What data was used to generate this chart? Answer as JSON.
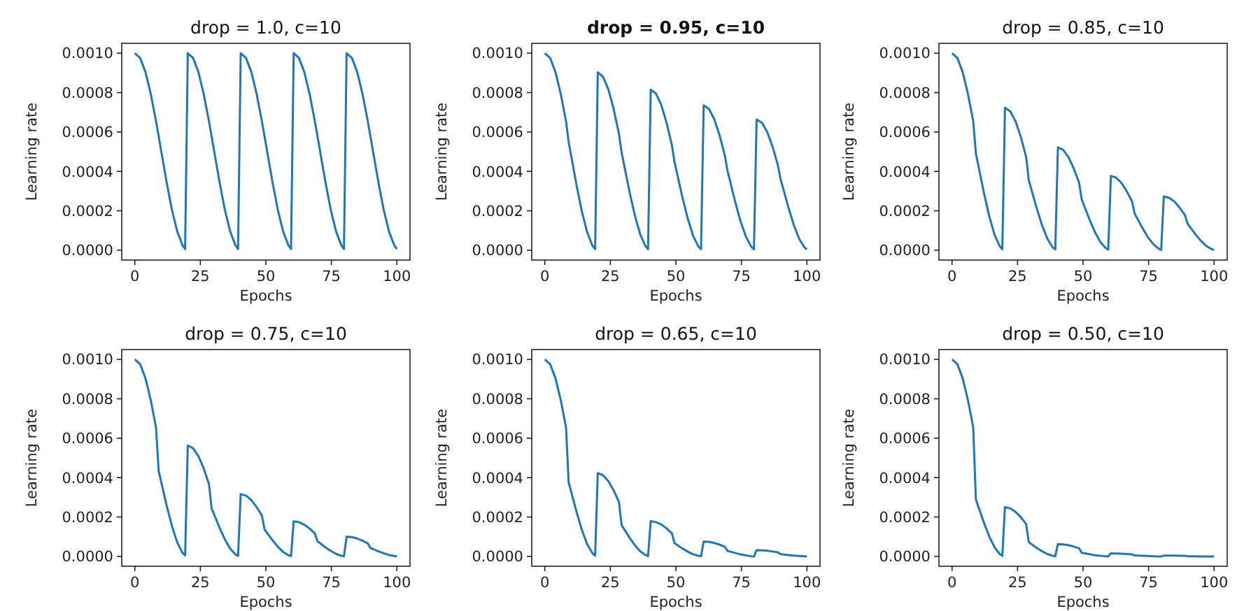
{
  "chart_data": [
    {
      "type": "line",
      "title": "drop = 1.0, c=10",
      "xlabel": "Epochs",
      "ylabel": "Learning rate",
      "xlim": [
        -5,
        105
      ],
      "ylim": [
        -5e-05,
        0.00105
      ],
      "xticks": [
        0,
        25,
        50,
        75,
        100
      ],
      "yticks": [
        {
          "value": 0,
          "label": "0.0000"
        },
        {
          "value": 0.0002,
          "label": "0.0002"
        },
        {
          "value": 0.0004,
          "label": "0.0004"
        },
        {
          "value": 0.0006,
          "label": "0.0006"
        },
        {
          "value": 0.0008,
          "label": "0.0008"
        },
        {
          "value": 0.001,
          "label": "0.0010"
        }
      ],
      "x": [
        0,
        2.02,
        4.04,
        6.06,
        8.08,
        9.09,
        12.12,
        14.14,
        16.16,
        18.18,
        19.19,
        20.2,
        22.22,
        24.24,
        26.26,
        28.28,
        29.29,
        32.32,
        34.34,
        36.36,
        38.38,
        39.39,
        40.4,
        42.42,
        44.44,
        46.46,
        48.48,
        49.49,
        52.53,
        54.55,
        56.57,
        58.59,
        59.6,
        60.61,
        62.63,
        64.65,
        66.67,
        68.69,
        69.7,
        72.73,
        74.75,
        76.77,
        78.79,
        79.8,
        80.81,
        82.83,
        84.85,
        86.87,
        88.89,
        89.9,
        92.93,
        94.95,
        96.97,
        98.99,
        100
      ],
      "series": [
        {
          "color": "#1f77b4",
          "values": [
            0.001,
            0.000976,
            0.000905,
            0.000794,
            0.000655,
            0.000578,
            0.000346,
            0.000206,
            9.6e-05,
            2.5e-05,
            6e-06,
            0.001,
            0.000976,
            0.000905,
            0.000794,
            0.000655,
            0.000578,
            0.000346,
            0.000206,
            9.6e-05,
            2.5e-05,
            6e-06,
            0.001,
            0.000976,
            0.000905,
            0.000794,
            0.000655,
            0.000578,
            0.000346,
            0.000206,
            9.6e-05,
            2.5e-05,
            6e-06,
            0.001,
            0.000976,
            0.000905,
            0.000794,
            0.000655,
            0.000578,
            0.000346,
            0.000206,
            9.6e-05,
            2.5e-05,
            6e-06,
            0.001,
            0.000976,
            0.000905,
            0.000794,
            0.000655,
            0.000578,
            0.000346,
            0.000206,
            9.6e-05,
            2.5e-05,
            6e-06
          ]
        }
      ]
    },
    {
      "type": "line",
      "title": "drop = 0.95, c=10",
      "xlabel": "Epochs",
      "ylabel": "Learning rate",
      "xlim": [
        -5,
        105
      ],
      "ylim": [
        -5e-05,
        0.00105
      ],
      "xticks": [
        0,
        25,
        50,
        75,
        100
      ],
      "yticks": [
        {
          "value": 0,
          "label": "0.0000"
        },
        {
          "value": 0.0002,
          "label": "0.0002"
        },
        {
          "value": 0.0004,
          "label": "0.0004"
        },
        {
          "value": 0.0006,
          "label": "0.0006"
        },
        {
          "value": 0.0008,
          "label": "0.0008"
        },
        {
          "value": 0.001,
          "label": "0.0010"
        }
      ],
      "x": [
        0,
        2.02,
        4.04,
        6.06,
        8.08,
        9.09,
        12.12,
        14.14,
        16.16,
        18.18,
        19.19,
        20.2,
        22.22,
        24.24,
        26.26,
        28.28,
        29.29,
        32.32,
        34.34,
        36.36,
        38.38,
        39.39,
        40.4,
        42.42,
        44.44,
        46.46,
        48.48,
        49.49,
        52.53,
        54.55,
        56.57,
        58.59,
        59.6,
        60.61,
        62.63,
        64.65,
        66.67,
        68.69,
        69.7,
        72.73,
        74.75,
        76.77,
        78.79,
        79.8,
        80.81,
        82.83,
        84.85,
        86.87,
        88.89,
        89.9,
        92.93,
        94.95,
        96.97,
        98.99,
        100
      ],
      "series": [
        {
          "color": "#1f77b4",
          "values": [
            0.001,
            0.000976,
            0.000905,
            0.000794,
            0.000655,
            0.000549,
            0.000328,
            0.000196,
            9.1e-05,
            2.3e-05,
            6e-06,
            0.000903,
            0.00088,
            0.000816,
            0.000717,
            0.000591,
            0.000496,
            0.000296,
            0.000177,
            8.2e-05,
            2.1e-05,
            5e-06,
            0.000815,
            0.000795,
            0.000737,
            0.000647,
            0.000533,
            0.000447,
            0.000267,
            0.00016,
            7.4e-05,
            1.9e-05,
            5e-06,
            0.000735,
            0.000717,
            0.000665,
            0.000584,
            0.000481,
            0.000404,
            0.000241,
            0.000144,
            6.7e-05,
            1.7e-05,
            4e-06,
            0.000663,
            0.000647,
            0.0006,
            0.000527,
            0.000434,
            0.000364,
            0.000218,
            0.00013,
            6e-05,
            1.5e-05,
            4e-06
          ]
        }
      ]
    },
    {
      "type": "line",
      "title": "drop = 0.85, c=10",
      "xlabel": "Epochs",
      "ylabel": "Learning rate",
      "xlim": [
        -5,
        105
      ],
      "ylim": [
        -5e-05,
        0.00105
      ],
      "xticks": [
        0,
        25,
        50,
        75,
        100
      ],
      "yticks": [
        {
          "value": 0,
          "label": "0.0000"
        },
        {
          "value": 0.0002,
          "label": "0.0002"
        },
        {
          "value": 0.0004,
          "label": "0.0004"
        },
        {
          "value": 0.0006,
          "label": "0.0006"
        },
        {
          "value": 0.0008,
          "label": "0.0008"
        },
        {
          "value": 0.001,
          "label": "0.0010"
        }
      ],
      "x": [
        0,
        2.02,
        4.04,
        6.06,
        8.08,
        9.09,
        12.12,
        14.14,
        16.16,
        18.18,
        19.19,
        20.2,
        22.22,
        24.24,
        26.26,
        28.28,
        29.29,
        32.32,
        34.34,
        36.36,
        38.38,
        39.39,
        40.4,
        42.42,
        44.44,
        46.46,
        48.48,
        49.49,
        52.53,
        54.55,
        56.57,
        58.59,
        59.6,
        60.61,
        62.63,
        64.65,
        66.67,
        68.69,
        69.7,
        72.73,
        74.75,
        76.77,
        78.79,
        79.8,
        80.81,
        82.83,
        84.85,
        86.87,
        88.89,
        89.9,
        92.93,
        94.95,
        96.97,
        98.99,
        100
      ],
      "series": [
        {
          "color": "#1f77b4",
          "values": [
            0.001,
            0.000976,
            0.000905,
            0.000794,
            0.000655,
            0.000492,
            0.000294,
            0.000175,
            8.1e-05,
            2.1e-05,
            5e-06,
            0.000723,
            0.000705,
            0.000654,
            0.000574,
            0.000473,
            0.000355,
            0.000212,
            0.000127,
            5.9e-05,
            1.5e-05,
            4e-06,
            0.000522,
            0.000509,
            0.000472,
            0.000414,
            0.000342,
            0.000257,
            0.000153,
            9.1e-05,
            4.2e-05,
            1.1e-05,
            3e-06,
            0.000377,
            0.000368,
            0.000341,
            0.000299,
            0.000247,
            0.000185,
            0.000111,
            6.6e-05,
            3.1e-05,
            8e-06,
            2e-06,
            0.000273,
            0.000266,
            0.000247,
            0.000216,
            0.000178,
            0.000134,
            8e-05,
            4.8e-05,
            2.2e-05,
            6e-06,
            1e-06
          ]
        }
      ]
    },
    {
      "type": "line",
      "title": "drop = 0.75, c=10",
      "xlabel": "Epochs",
      "ylabel": "Learning rate",
      "xlim": [
        -5,
        105
      ],
      "ylim": [
        -5e-05,
        0.00105
      ],
      "xticks": [
        0,
        25,
        50,
        75,
        100
      ],
      "yticks": [
        {
          "value": 0,
          "label": "0.0000"
        },
        {
          "value": 0.0002,
          "label": "0.0002"
        },
        {
          "value": 0.0004,
          "label": "0.0004"
        },
        {
          "value": 0.0006,
          "label": "0.0006"
        },
        {
          "value": 0.0008,
          "label": "0.0008"
        },
        {
          "value": 0.001,
          "label": "0.0010"
        }
      ],
      "x": [
        0,
        2.02,
        4.04,
        6.06,
        8.08,
        9.09,
        12.12,
        14.14,
        16.16,
        18.18,
        19.19,
        20.2,
        22.22,
        24.24,
        26.26,
        28.28,
        29.29,
        32.32,
        34.34,
        36.36,
        38.38,
        39.39,
        40.4,
        42.42,
        44.44,
        46.46,
        48.48,
        49.49,
        52.53,
        54.55,
        56.57,
        58.59,
        59.6,
        60.61,
        62.63,
        64.65,
        66.67,
        68.69,
        69.7,
        72.73,
        74.75,
        76.77,
        78.79,
        79.8,
        80.81,
        82.83,
        84.85,
        86.87,
        88.89,
        89.9,
        92.93,
        94.95,
        96.97,
        98.99,
        100
      ],
      "series": [
        {
          "color": "#1f77b4",
          "values": [
            0.001,
            0.000976,
            0.000905,
            0.000794,
            0.000655,
            0.000434,
            0.000259,
            0.000155,
            7.2e-05,
            1.8e-05,
            5e-06,
            0.000563,
            0.000549,
            0.000509,
            0.000447,
            0.000368,
            0.000244,
            0.000146,
            8.7e-05,
            4e-05,
            1e-05,
            3e-06,
            0.000316,
            0.000309,
            0.000286,
            0.000251,
            0.000207,
            0.000137,
            8.2e-05,
            4.9e-05,
            2.3e-05,
            6e-06,
            2e-06,
            0.000178,
            0.000174,
            0.000161,
            0.000141,
            0.000117,
            7.7e-05,
            4.6e-05,
            2.8e-05,
            1.3e-05,
            3e-06,
            1e-06,
            0.0001,
            9.8e-05,
            9.1e-05,
            8e-05,
            6.6e-05,
            4.3e-05,
            2.6e-05,
            1.6e-05,
            7e-06,
            2e-06,
            0
          ]
        }
      ]
    },
    {
      "type": "line",
      "title": "drop = 0.65, c=10",
      "xlabel": "Epochs",
      "ylabel": "Learning rate",
      "xlim": [
        -5,
        105
      ],
      "ylim": [
        -5e-05,
        0.00105
      ],
      "xticks": [
        0,
        25,
        50,
        75,
        100
      ],
      "yticks": [
        {
          "value": 0,
          "label": "0.0000"
        },
        {
          "value": 0.0002,
          "label": "0.0002"
        },
        {
          "value": 0.0004,
          "label": "0.0004"
        },
        {
          "value": 0.0006,
          "label": "0.0006"
        },
        {
          "value": 0.0008,
          "label": "0.0008"
        },
        {
          "value": 0.001,
          "label": "0.0010"
        }
      ],
      "x": [
        0,
        2.02,
        4.04,
        6.06,
        8.08,
        9.09,
        12.12,
        14.14,
        16.16,
        18.18,
        19.19,
        20.2,
        22.22,
        24.24,
        26.26,
        28.28,
        29.29,
        32.32,
        34.34,
        36.36,
        38.38,
        39.39,
        40.4,
        42.42,
        44.44,
        46.46,
        48.48,
        49.49,
        52.53,
        54.55,
        56.57,
        58.59,
        59.6,
        60.61,
        62.63,
        64.65,
        66.67,
        68.69,
        69.7,
        72.73,
        74.75,
        76.77,
        78.79,
        79.8,
        80.81,
        82.83,
        84.85,
        86.87,
        88.89,
        89.9,
        92.93,
        94.95,
        96.97,
        98.99,
        100
      ],
      "series": [
        {
          "color": "#1f77b4",
          "values": [
            0.001,
            0.000976,
            0.000905,
            0.000794,
            0.000655,
            0.000376,
            0.000225,
            0.000134,
            6.2e-05,
            1.6e-05,
            4e-06,
            0.000423,
            0.000412,
            0.000382,
            0.000335,
            0.000277,
            0.000159,
            9.5e-05,
            5.7e-05,
            2.6e-05,
            7e-06,
            2e-06,
            0.000179,
            0.000174,
            0.000162,
            0.000142,
            0.000117,
            6.7e-05,
            4e-05,
            2.4e-05,
            1.1e-05,
            3e-06,
            1e-06,
            7.5e-05,
            7.4e-05,
            6.8e-05,
            6e-05,
            4.9e-05,
            2.8e-05,
            1.7e-05,
            1e-05,
            5e-06,
            1e-06,
            0,
            3.2e-05,
            3.1e-05,
            2.9e-05,
            2.5e-05,
            2.1e-05,
            1.2e-05,
            7e-06,
            4e-06,
            2e-06,
            1e-06,
            0
          ]
        }
      ]
    },
    {
      "type": "line",
      "title": "drop = 0.50, c=10",
      "xlabel": "Epochs",
      "ylabel": "Learning rate",
      "xlim": [
        -5,
        105
      ],
      "ylim": [
        -5e-05,
        0.00105
      ],
      "xticks": [
        0,
        25,
        50,
        75,
        100
      ],
      "yticks": [
        {
          "value": 0,
          "label": "0.0000"
        },
        {
          "value": 0.0002,
          "label": "0.0002"
        },
        {
          "value": 0.0004,
          "label": "0.0004"
        },
        {
          "value": 0.0006,
          "label": "0.0006"
        },
        {
          "value": 0.0008,
          "label": "0.0008"
        },
        {
          "value": 0.001,
          "label": "0.0010"
        }
      ],
      "x": [
        0,
        2.02,
        4.04,
        6.06,
        8.08,
        9.09,
        12.12,
        14.14,
        16.16,
        18.18,
        19.19,
        20.2,
        22.22,
        24.24,
        26.26,
        28.28,
        29.29,
        32.32,
        34.34,
        36.36,
        38.38,
        39.39,
        40.4,
        42.42,
        44.44,
        46.46,
        48.48,
        49.49,
        52.53,
        54.55,
        56.57,
        58.59,
        59.6,
        60.61,
        62.63,
        64.65,
        66.67,
        68.69,
        69.7,
        72.73,
        74.75,
        76.77,
        78.79,
        79.8,
        80.81,
        82.83,
        84.85,
        86.87,
        88.89,
        89.9,
        92.93,
        94.95,
        96.97,
        98.99,
        100
      ],
      "series": [
        {
          "color": "#1f77b4",
          "values": [
            0.001,
            0.000976,
            0.000905,
            0.000794,
            0.000655,
            0.000289,
            0.000173,
            0.000103,
            4.8e-05,
            1.2e-05,
            3e-06,
            0.00025,
            0.000244,
            0.000226,
            0.000199,
            0.000164,
            7.2e-05,
            4.3e-05,
            2.6e-05,
            1.2e-05,
            3e-06,
            1e-06,
            6.3e-05,
            6.1e-05,
            5.7e-05,
            5e-05,
            4.1e-05,
            1.8e-05,
            1.1e-05,
            6e-06,
            3e-06,
            1e-06,
            0,
            1.6e-05,
            1.5e-05,
            1.4e-05,
            1.2e-05,
            1e-05,
            5e-06,
            3e-06,
            2e-06,
            1e-06,
            0,
            0,
            4e-06,
            4e-06,
            4e-06,
            3e-06,
            3e-06,
            1e-06,
            1e-06,
            0,
            0,
            0,
            0
          ]
        }
      ]
    }
  ]
}
